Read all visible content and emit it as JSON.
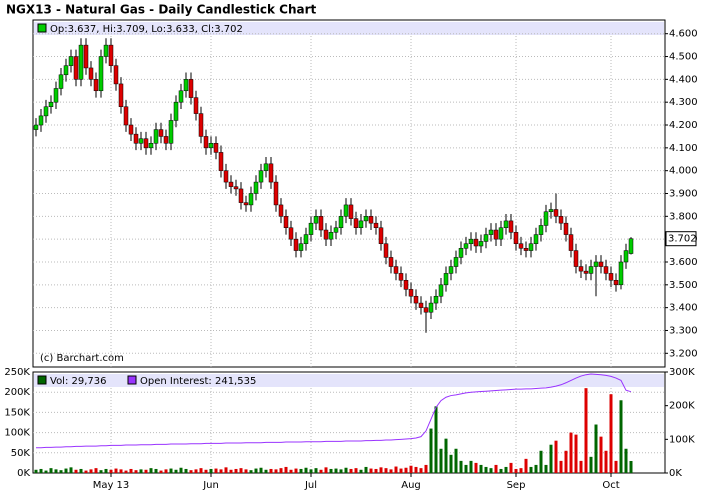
{
  "title": "NGX13 - Natural Gas - Daily Candlestick Chart",
  "chart_data": [
    {
      "type": "candlestick",
      "legend_label": "Op:3.637, Hi:3.709, Lo:3.633, Cl:3.702",
      "credit": "(c) Barchart.com",
      "up_color": "#00cc00",
      "down_color": "#dd0000",
      "grid": true,
      "ylim": [
        3.14,
        4.66
      ],
      "yticks": [
        {
          "value": 3.2,
          "label": "3.200"
        },
        {
          "value": 3.3,
          "label": "3.300"
        },
        {
          "value": 3.4,
          "label": "3.400"
        },
        {
          "value": 3.5,
          "label": "3.500"
        },
        {
          "value": 3.6,
          "label": "3.600"
        },
        {
          "value": 3.7,
          "label": "3.700"
        },
        {
          "value": 3.8,
          "label": "3.800"
        },
        {
          "value": 3.9,
          "label": "3.900"
        },
        {
          "value": 4.0,
          "label": "4.000"
        },
        {
          "value": 4.1,
          "label": "4.100"
        },
        {
          "value": 4.2,
          "label": "4.200"
        },
        {
          "value": 4.3,
          "label": "4.300"
        },
        {
          "value": 4.4,
          "label": "4.400"
        },
        {
          "value": 4.5,
          "label": "4.500"
        },
        {
          "value": 4.6,
          "label": "4.600"
        }
      ],
      "xticks": [
        {
          "value": 15,
          "label": "May 13"
        },
        {
          "value": 35,
          "label": "Jun"
        },
        {
          "value": 55,
          "label": "Jul"
        },
        {
          "value": 75,
          "label": "Aug"
        },
        {
          "value": 96,
          "label": "Sep"
        },
        {
          "value": 115,
          "label": "Oct"
        }
      ],
      "ohlc": [
        [
          4.18,
          4.23,
          4.15,
          4.2
        ],
        [
          4.2,
          4.27,
          4.17,
          4.24
        ],
        [
          4.24,
          4.31,
          4.21,
          4.28
        ],
        [
          4.28,
          4.33,
          4.25,
          4.3
        ],
        [
          4.3,
          4.39,
          4.27,
          4.36
        ],
        [
          4.36,
          4.45,
          4.33,
          4.42
        ],
        [
          4.42,
          4.49,
          4.39,
          4.46
        ],
        [
          4.46,
          4.53,
          4.43,
          4.5
        ],
        [
          4.5,
          4.53,
          4.37,
          4.4
        ],
        [
          4.4,
          4.58,
          4.37,
          4.55
        ],
        [
          4.55,
          4.58,
          4.42,
          4.45
        ],
        [
          4.45,
          4.48,
          4.37,
          4.4
        ],
        [
          4.4,
          4.43,
          4.32,
          4.35
        ],
        [
          4.35,
          4.53,
          4.32,
          4.5
        ],
        [
          4.5,
          4.58,
          4.47,
          4.55
        ],
        [
          4.55,
          4.58,
          4.43,
          4.46
        ],
        [
          4.46,
          4.49,
          4.35,
          4.38
        ],
        [
          4.38,
          4.41,
          4.25,
          4.28
        ],
        [
          4.28,
          4.31,
          4.17,
          4.2
        ],
        [
          4.2,
          4.23,
          4.13,
          4.16
        ],
        [
          4.16,
          4.19,
          4.09,
          4.12
        ],
        [
          4.12,
          4.17,
          4.09,
          4.14
        ],
        [
          4.14,
          4.17,
          4.07,
          4.1
        ],
        [
          4.1,
          4.15,
          4.07,
          4.12
        ],
        [
          4.12,
          4.21,
          4.09,
          4.18
        ],
        [
          4.18,
          4.21,
          4.12,
          4.15
        ],
        [
          4.15,
          4.18,
          4.09,
          4.12
        ],
        [
          4.12,
          4.25,
          4.09,
          4.22
        ],
        [
          4.22,
          4.33,
          4.19,
          4.3
        ],
        [
          4.3,
          4.38,
          4.27,
          4.35
        ],
        [
          4.35,
          4.43,
          4.32,
          4.4
        ],
        [
          4.4,
          4.43,
          4.29,
          4.32
        ],
        [
          4.32,
          4.35,
          4.22,
          4.25
        ],
        [
          4.25,
          4.28,
          4.12,
          4.15
        ],
        [
          4.15,
          4.18,
          4.07,
          4.1
        ],
        [
          4.1,
          4.15,
          4.07,
          4.12
        ],
        [
          4.12,
          4.15,
          4.05,
          4.08
        ],
        [
          4.08,
          4.11,
          3.97,
          4.0
        ],
        [
          4.0,
          4.03,
          3.92,
          3.95
        ],
        [
          3.95,
          3.98,
          3.9,
          3.93
        ],
        [
          3.93,
          3.96,
          3.89,
          3.92
        ],
        [
          3.92,
          3.95,
          3.83,
          3.86
        ],
        [
          3.86,
          3.89,
          3.82,
          3.85
        ],
        [
          3.85,
          3.93,
          3.82,
          3.9
        ],
        [
          3.9,
          3.98,
          3.87,
          3.95
        ],
        [
          3.95,
          4.03,
          3.92,
          4.0
        ],
        [
          4.0,
          4.06,
          3.97,
          4.03
        ],
        [
          4.03,
          4.06,
          3.92,
          3.95
        ],
        [
          3.95,
          3.98,
          3.82,
          3.85
        ],
        [
          3.85,
          3.88,
          3.77,
          3.8
        ],
        [
          3.8,
          3.83,
          3.72,
          3.75
        ],
        [
          3.75,
          3.78,
          3.67,
          3.7
        ],
        [
          3.7,
          3.73,
          3.62,
          3.65
        ],
        [
          3.65,
          3.71,
          3.62,
          3.68
        ],
        [
          3.68,
          3.75,
          3.65,
          3.72
        ],
        [
          3.72,
          3.8,
          3.69,
          3.77
        ],
        [
          3.77,
          3.83,
          3.74,
          3.8
        ],
        [
          3.8,
          3.83,
          3.71,
          3.74
        ],
        [
          3.74,
          3.77,
          3.67,
          3.7
        ],
        [
          3.7,
          3.76,
          3.67,
          3.73
        ],
        [
          3.73,
          3.78,
          3.7,
          3.75
        ],
        [
          3.75,
          3.83,
          3.72,
          3.8
        ],
        [
          3.8,
          3.88,
          3.77,
          3.85
        ],
        [
          3.85,
          3.88,
          3.76,
          3.79
        ],
        [
          3.79,
          3.82,
          3.72,
          3.75
        ],
        [
          3.75,
          3.81,
          3.72,
          3.78
        ],
        [
          3.78,
          3.83,
          3.75,
          3.8
        ],
        [
          3.8,
          3.83,
          3.74,
          3.77
        ],
        [
          3.77,
          3.8,
          3.72,
          3.75
        ],
        [
          3.75,
          3.78,
          3.65,
          3.68
        ],
        [
          3.68,
          3.71,
          3.59,
          3.62
        ],
        [
          3.62,
          3.65,
          3.55,
          3.58
        ],
        [
          3.58,
          3.61,
          3.52,
          3.55
        ],
        [
          3.55,
          3.58,
          3.49,
          3.52
        ],
        [
          3.52,
          3.55,
          3.45,
          3.48
        ],
        [
          3.48,
          3.51,
          3.42,
          3.45
        ],
        [
          3.45,
          3.48,
          3.39,
          3.42
        ],
        [
          3.42,
          3.45,
          3.37,
          3.4
        ],
        [
          3.4,
          3.43,
          3.29,
          3.38
        ],
        [
          3.38,
          3.45,
          3.35,
          3.42
        ],
        [
          3.42,
          3.48,
          3.39,
          3.45
        ],
        [
          3.45,
          3.53,
          3.42,
          3.5
        ],
        [
          3.5,
          3.58,
          3.47,
          3.55
        ],
        [
          3.55,
          3.61,
          3.52,
          3.58
        ],
        [
          3.58,
          3.65,
          3.55,
          3.62
        ],
        [
          3.62,
          3.69,
          3.59,
          3.66
        ],
        [
          3.66,
          3.71,
          3.63,
          3.68
        ],
        [
          3.68,
          3.73,
          3.65,
          3.7
        ],
        [
          3.7,
          3.73,
          3.64,
          3.67
        ],
        [
          3.67,
          3.72,
          3.64,
          3.69
        ],
        [
          3.69,
          3.75,
          3.66,
          3.72
        ],
        [
          3.72,
          3.77,
          3.69,
          3.74
        ],
        [
          3.74,
          3.77,
          3.67,
          3.7
        ],
        [
          3.7,
          3.78,
          3.67,
          3.75
        ],
        [
          3.75,
          3.81,
          3.72,
          3.78
        ],
        [
          3.78,
          3.81,
          3.7,
          3.73
        ],
        [
          3.73,
          3.76,
          3.65,
          3.68
        ],
        [
          3.68,
          3.71,
          3.63,
          3.66
        ],
        [
          3.66,
          3.69,
          3.62,
          3.65
        ],
        [
          3.65,
          3.71,
          3.62,
          3.68
        ],
        [
          3.68,
          3.75,
          3.65,
          3.72
        ],
        [
          3.72,
          3.79,
          3.69,
          3.76
        ],
        [
          3.76,
          3.85,
          3.73,
          3.82
        ],
        [
          3.82,
          3.86,
          3.79,
          3.83
        ],
        [
          3.83,
          3.9,
          3.77,
          3.8
        ],
        [
          3.8,
          3.83,
          3.74,
          3.77
        ],
        [
          3.77,
          3.8,
          3.69,
          3.72
        ],
        [
          3.72,
          3.75,
          3.62,
          3.65
        ],
        [
          3.65,
          3.68,
          3.55,
          3.58
        ],
        [
          3.58,
          3.61,
          3.53,
          3.56
        ],
        [
          3.56,
          3.59,
          3.52,
          3.55
        ],
        [
          3.55,
          3.61,
          3.52,
          3.58
        ],
        [
          3.58,
          3.63,
          3.45,
          3.6
        ],
        [
          3.6,
          3.63,
          3.55,
          3.58
        ],
        [
          3.58,
          3.61,
          3.52,
          3.55
        ],
        [
          3.55,
          3.58,
          3.49,
          3.52
        ],
        [
          3.52,
          3.55,
          3.47,
          3.5
        ],
        [
          3.5,
          3.63,
          3.48,
          3.6
        ],
        [
          3.6,
          3.68,
          3.57,
          3.65
        ],
        [
          3.637,
          3.709,
          3.633,
          3.702
        ]
      ]
    },
    {
      "type": "volume",
      "grid": true,
      "ylim": [
        0,
        250
      ],
      "yticks": [
        {
          "value": 0,
          "label": "0K"
        },
        {
          "value": 50,
          "label": "50K"
        },
        {
          "value": 100,
          "label": "100K"
        },
        {
          "value": 150,
          "label": "150K"
        },
        {
          "value": 200,
          "label": "200K"
        },
        {
          "value": 250,
          "label": "250K"
        }
      ],
      "y2lim": [
        0,
        300
      ],
      "y2ticks": [
        {
          "value": 0,
          "label": "0K"
        },
        {
          "value": 100,
          "label": "100K"
        },
        {
          "value": 200,
          "label": "200K"
        },
        {
          "value": 300,
          "label": "300K"
        }
      ],
      "series": [
        {
          "name": "Vol: 29,736",
          "color": "#006600",
          "axis": "y",
          "values": [
            8,
            10,
            6,
            12,
            9,
            7,
            11,
            14,
            8,
            10,
            6,
            9,
            12,
            7,
            10,
            8,
            11,
            9,
            6,
            10,
            7,
            9,
            8,
            12,
            10,
            6,
            9,
            11,
            8,
            13,
            10,
            7,
            9,
            12,
            8,
            10,
            11,
            9,
            14,
            8,
            10,
            12,
            9,
            7,
            11,
            13,
            8,
            10,
            9,
            12,
            15,
            8,
            11,
            10,
            13,
            9,
            12,
            8,
            14,
            10,
            11,
            9,
            13,
            10,
            12,
            8,
            15,
            11,
            10,
            14,
            12,
            9,
            16,
            11,
            13,
            18,
            15,
            12,
            20,
            110,
            165,
            60,
            85,
            45,
            60,
            30,
            20,
            30,
            25,
            20,
            15,
            12,
            20,
            10,
            15,
            25,
            10,
            12,
            35,
            15,
            20,
            55,
            20,
            70,
            80,
            30,
            55,
            100,
            95,
            30,
            210,
            40,
            120,
            90,
            55,
            195,
            30,
            180,
            60,
            29.736
          ]
        },
        {
          "name": "Open Interest: 241,535",
          "color": "#9933ff",
          "axis": "y2",
          "values": [
            75,
            75,
            76,
            76,
            77,
            77,
            78,
            78,
            79,
            79,
            80,
            80,
            80,
            81,
            81,
            82,
            82,
            82,
            83,
            83,
            83,
            84,
            84,
            84,
            85,
            85,
            85,
            86,
            86,
            86,
            86,
            87,
            87,
            87,
            88,
            88,
            88,
            88,
            89,
            89,
            89,
            89,
            90,
            90,
            90,
            90,
            91,
            91,
            91,
            91,
            92,
            92,
            92,
            92,
            93,
            93,
            93,
            93,
            94,
            94,
            94,
            94,
            95,
            95,
            95,
            95,
            96,
            96,
            97,
            97,
            98,
            98,
            99,
            100,
            101,
            102,
            104,
            108,
            125,
            160,
            195,
            215,
            225,
            230,
            232,
            235,
            238,
            240,
            241,
            242,
            243,
            244,
            245,
            246,
            247,
            248,
            249,
            249,
            250,
            250,
            251,
            252,
            253,
            255,
            258,
            262,
            268,
            275,
            282,
            288,
            292,
            294,
            293,
            292,
            290,
            287,
            282,
            275,
            246,
            241.535
          ]
        }
      ]
    }
  ]
}
